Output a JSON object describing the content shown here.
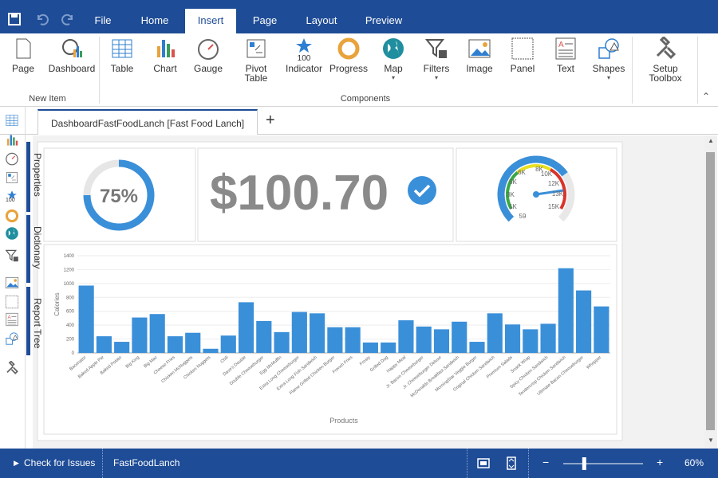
{
  "toolbar": {
    "tabs": [
      "File",
      "Home",
      "Insert",
      "Page",
      "Layout",
      "Preview"
    ],
    "active_tab": 2
  },
  "ribbon": {
    "groups": [
      {
        "label": "New Item",
        "buttons": [
          "Page",
          "Dashboard"
        ]
      },
      {
        "label": "Components",
        "buttons": [
          "Table",
          "Chart",
          "Gauge",
          "Pivot Table",
          "Indicator",
          "Progress",
          "Map",
          "Filters",
          "Image",
          "Panel",
          "Text",
          "Shapes"
        ]
      }
    ],
    "toolbox": "Setup Toolbox",
    "icon_caption": "100"
  },
  "document_tab": "DashboardFastFoodLanch [Fast Food Lanch]",
  "side_panels": [
    "Properties",
    "Dictionary",
    "Report Tree"
  ],
  "progress": {
    "value": 75,
    "label": "75%"
  },
  "indicator": {
    "text": "$100.70"
  },
  "gauge": {
    "labels": [
      "1K",
      "3K",
      "5K",
      "6K",
      "8K",
      "10K",
      "12K",
      "13K",
      "15K",
      "59"
    ]
  },
  "chart_data": {
    "type": "bar",
    "xlabel": "Products",
    "ylabel": "Calories",
    "categories": [
      "Baconator",
      "Baked Apple Pie",
      "Baked Potato",
      "Big King",
      "Big Mac",
      "Cheese Fries",
      "Chicken McNuggets",
      "Chicken Nuggets",
      "Chili",
      "Dave's Double",
      "Double Cheeseburger",
      "Egg McMuffin",
      "Extra Long Cheeseburger",
      "Extra Long Fish Sandwich",
      "Flame Grilled Chicken Burger",
      "French Fries",
      "Frosty",
      "Grilled Dog",
      "Happy Meal",
      "Jr. Bacon Cheeseburger",
      "Jr. Cheeseburger Deluxe",
      "McDonalds Breakfast Sandwich",
      "MorningStar Veggie Burger",
      "Original Chicken Sandwich",
      "Premium Salads",
      "Snack Wrap",
      "Spicy Chicken Sandwich",
      "Tendercrisp Chicken Sandwich",
      "Ultimate Bacon Cheeseburger",
      "Whopper"
    ],
    "values": [
      970,
      240,
      160,
      510,
      560,
      240,
      290,
      60,
      250,
      730,
      460,
      300,
      590,
      570,
      370,
      370,
      150,
      150,
      470,
      380,
      340,
      450,
      160,
      570,
      410,
      340,
      420,
      1220,
      900,
      670
    ],
    "color": "#3a8fd9",
    "ylim": [
      0,
      1400
    ],
    "yticks": [
      0,
      200,
      400,
      600,
      800,
      1000,
      1200,
      1400
    ],
    "grid": true
  },
  "status": {
    "check": "Check for Issues",
    "report": "FastFoodLanch",
    "zoom": {
      "value": 60,
      "label": "60%"
    }
  }
}
